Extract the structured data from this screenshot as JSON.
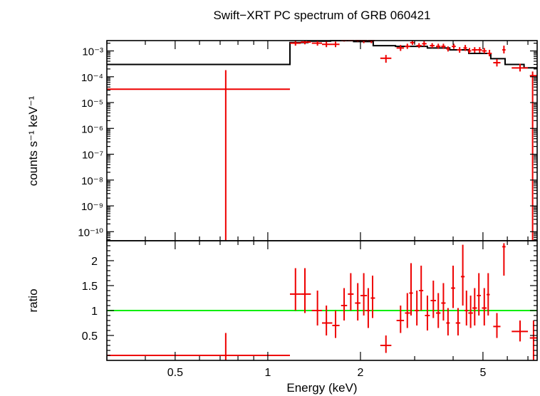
{
  "chart_data": {
    "type": "scatter",
    "title": "Swift−XRT PC spectrum of GRB 060421",
    "xlabel": "Energy (keV)",
    "xscale": "log",
    "xlim": [
      0.3,
      7.5
    ],
    "xticks": [
      {
        "value": 0.5,
        "label": "0.5"
      },
      {
        "value": 1,
        "label": "1"
      },
      {
        "value": 2,
        "label": "2"
      },
      {
        "value": 5,
        "label": "5"
      }
    ],
    "colors": {
      "data": "#ee0000",
      "model": "#000000",
      "unity": "#00ee00"
    },
    "top_panel": {
      "ylabel": "counts s⁻¹ keV⁻¹",
      "yscale": "log",
      "ylim_exp": [
        -10.35,
        -2.6
      ],
      "ytick_exponents": [
        -3,
        -4,
        -5,
        -6,
        -7,
        -8,
        -9,
        -10
      ],
      "ytick_labels": [
        "10⁻³",
        "10⁻⁴",
        "10⁻⁵",
        "10⁻⁶",
        "10⁻⁷",
        "10⁻⁸",
        "10⁻⁹",
        "10⁻¹⁰"
      ],
      "model_steps": [
        {
          "x0": 0.3,
          "x1": 1.18,
          "y": 0.0003
        },
        {
          "x0": 1.18,
          "x1": 1.35,
          "y": 0.0021
        },
        {
          "x0": 1.35,
          "x1": 1.6,
          "y": 0.0024
        },
        {
          "x0": 1.6,
          "x1": 1.9,
          "y": 0.0025
        },
        {
          "x0": 1.9,
          "x1": 2.2,
          "y": 0.0023
        },
        {
          "x0": 2.2,
          "x1": 2.6,
          "y": 0.0016
        },
        {
          "x0": 2.6,
          "x1": 3.3,
          "y": 0.0015
        },
        {
          "x0": 3.3,
          "x1": 3.9,
          "y": 0.0013
        },
        {
          "x0": 3.9,
          "x1": 4.5,
          "y": 0.0011
        },
        {
          "x0": 4.5,
          "x1": 5.3,
          "y": 0.0008
        },
        {
          "x0": 5.3,
          "x1": 5.9,
          "y": 0.0005
        },
        {
          "x0": 5.9,
          "x1": 6.8,
          "y": 0.0003
        },
        {
          "x0": 6.8,
          "x1": 7.5,
          "y": 0.00022
        }
      ],
      "points": [
        {
          "x": 0.73,
          "xlo": 0.3,
          "xhi": 1.18,
          "y": 3.3e-05,
          "ylo": 3e-11,
          "yhi": 0.00018
        },
        {
          "x": 1.23,
          "xlo": 1.18,
          "xhi": 1.28,
          "y": 0.002,
          "ylo": 0.0016,
          "yhi": 0.0025
        },
        {
          "x": 1.32,
          "xlo": 1.28,
          "xhi": 1.38,
          "y": 0.0022,
          "ylo": 0.0018,
          "yhi": 0.0028
        },
        {
          "x": 1.45,
          "xlo": 1.39,
          "xhi": 1.5,
          "y": 0.002,
          "ylo": 0.0016,
          "yhi": 0.0025
        },
        {
          "x": 1.55,
          "xlo": 1.5,
          "xhi": 1.62,
          "y": 0.0018,
          "ylo": 0.0014,
          "yhi": 0.0023
        },
        {
          "x": 1.66,
          "xlo": 1.62,
          "xhi": 1.71,
          "y": 0.0018,
          "ylo": 0.0014,
          "yhi": 0.0023
        },
        {
          "x": 1.77,
          "xlo": 1.73,
          "xhi": 1.81,
          "y": 0.0028,
          "ylo": 0.0023,
          "yhi": 0.0034
        },
        {
          "x": 1.86,
          "xlo": 1.82,
          "xhi": 1.9,
          "y": 0.003,
          "ylo": 0.0025,
          "yhi": 0.0036
        },
        {
          "x": 1.96,
          "xlo": 1.92,
          "xhi": 2.0,
          "y": 0.0028,
          "ylo": 0.0023,
          "yhi": 0.0034
        },
        {
          "x": 2.05,
          "xlo": 2.0,
          "xhi": 2.1,
          "y": 0.0025,
          "ylo": 0.002,
          "yhi": 0.0031
        },
        {
          "x": 2.17,
          "xlo": 2.12,
          "xhi": 2.22,
          "y": 0.0025,
          "ylo": 0.002,
          "yhi": 0.0031
        },
        {
          "x": 2.42,
          "xlo": 2.32,
          "xhi": 2.52,
          "y": 0.00052,
          "ylo": 0.00035,
          "yhi": 0.0007
        },
        {
          "x": 2.7,
          "xlo": 2.62,
          "xhi": 2.77,
          "y": 0.0013,
          "ylo": 0.001,
          "yhi": 0.0017
        },
        {
          "x": 2.84,
          "xlo": 2.79,
          "xhi": 2.9,
          "y": 0.0015,
          "ylo": 0.0012,
          "yhi": 0.0019
        },
        {
          "x": 2.95,
          "xlo": 2.9,
          "xhi": 3.0,
          "y": 0.0021,
          "ylo": 0.0017,
          "yhi": 0.0026
        },
        {
          "x": 3.1,
          "xlo": 3.04,
          "xhi": 3.16,
          "y": 0.0016,
          "ylo": 0.0013,
          "yhi": 0.002
        },
        {
          "x": 3.22,
          "xlo": 3.17,
          "xhi": 3.28,
          "y": 0.0019,
          "ylo": 0.0015,
          "yhi": 0.0024
        },
        {
          "x": 3.42,
          "xlo": 3.36,
          "xhi": 3.48,
          "y": 0.0016,
          "ylo": 0.0013,
          "yhi": 0.002
        },
        {
          "x": 3.58,
          "xlo": 3.52,
          "xhi": 3.64,
          "y": 0.0015,
          "ylo": 0.0012,
          "yhi": 0.0019
        },
        {
          "x": 3.72,
          "xlo": 3.66,
          "xhi": 3.78,
          "y": 0.0015,
          "ylo": 0.0012,
          "yhi": 0.0019
        },
        {
          "x": 3.85,
          "xlo": 3.8,
          "xhi": 3.9,
          "y": 0.0012,
          "ylo": 0.00095,
          "yhi": 0.0015
        },
        {
          "x": 4.02,
          "xlo": 3.96,
          "xhi": 4.08,
          "y": 0.0015,
          "ylo": 0.0012,
          "yhi": 0.0019
        },
        {
          "x": 4.2,
          "xlo": 4.12,
          "xhi": 4.26,
          "y": 0.0011,
          "ylo": 0.00085,
          "yhi": 0.0014
        },
        {
          "x": 4.38,
          "xlo": 4.32,
          "xhi": 4.44,
          "y": 0.0013,
          "ylo": 0.001,
          "yhi": 0.0017
        },
        {
          "x": 4.52,
          "xlo": 4.46,
          "xhi": 4.58,
          "y": 0.001,
          "ylo": 0.0008,
          "yhi": 0.0013
        },
        {
          "x": 4.7,
          "xlo": 4.6,
          "xhi": 4.8,
          "y": 0.0011,
          "ylo": 0.00085,
          "yhi": 0.0014
        },
        {
          "x": 4.88,
          "xlo": 4.8,
          "xhi": 4.96,
          "y": 0.0011,
          "ylo": 0.00085,
          "yhi": 0.0014
        },
        {
          "x": 5.05,
          "xlo": 4.96,
          "xhi": 5.14,
          "y": 0.001,
          "ylo": 0.0008,
          "yhi": 0.0013
        },
        {
          "x": 5.25,
          "xlo": 5.16,
          "xhi": 5.34,
          "y": 0.0008,
          "ylo": 0.00062,
          "yhi": 0.0011
        },
        {
          "x": 5.55,
          "xlo": 5.4,
          "xhi": 5.7,
          "y": 0.00035,
          "ylo": 0.00025,
          "yhi": 0.00048
        },
        {
          "x": 5.85,
          "xlo": 5.78,
          "xhi": 5.92,
          "y": 0.0011,
          "ylo": 0.0008,
          "yhi": 0.0016
        },
        {
          "x": 6.6,
          "xlo": 6.2,
          "xhi": 7.0,
          "y": 0.00022,
          "ylo": 0.00016,
          "yhi": 0.00032
        },
        {
          "x": 7.25,
          "xlo": 7.1,
          "xhi": 7.5,
          "y": 0.00011,
          "ylo": 3e-11,
          "yhi": 0.00016
        }
      ]
    },
    "bottom_panel": {
      "ylabel": "ratio",
      "ylim": [
        0.0,
        2.4
      ],
      "yticks": [
        {
          "value": 0.5,
          "label": "0.5"
        },
        {
          "value": 1,
          "label": "1"
        },
        {
          "value": 1.5,
          "label": "1.5"
        },
        {
          "value": 2,
          "label": "2"
        }
      ],
      "unity_line": 1.0,
      "points": [
        {
          "x": 0.73,
          "xlo": 0.3,
          "xhi": 1.18,
          "y": 0.1,
          "ylo": 0.0,
          "yhi": 0.55
        },
        {
          "x": 1.23,
          "xlo": 1.18,
          "xhi": 1.28,
          "y": 1.33,
          "ylo": 1.0,
          "yhi": 1.85
        },
        {
          "x": 1.32,
          "xlo": 1.28,
          "xhi": 1.38,
          "y": 1.33,
          "ylo": 0.95,
          "yhi": 1.85
        },
        {
          "x": 1.45,
          "xlo": 1.39,
          "xhi": 1.5,
          "y": 1.0,
          "ylo": 0.7,
          "yhi": 1.4
        },
        {
          "x": 1.55,
          "xlo": 1.5,
          "xhi": 1.62,
          "y": 0.75,
          "ylo": 0.5,
          "yhi": 1.1
        },
        {
          "x": 1.66,
          "xlo": 1.62,
          "xhi": 1.71,
          "y": 0.7,
          "ylo": 0.45,
          "yhi": 1.0
        },
        {
          "x": 1.77,
          "xlo": 1.73,
          "xhi": 1.81,
          "y": 1.1,
          "ylo": 0.8,
          "yhi": 1.45
        },
        {
          "x": 1.86,
          "xlo": 1.82,
          "xhi": 1.9,
          "y": 1.33,
          "ylo": 1.0,
          "yhi": 1.75
        },
        {
          "x": 1.96,
          "xlo": 1.92,
          "xhi": 2.0,
          "y": 1.15,
          "ylo": 0.8,
          "yhi": 1.55
        },
        {
          "x": 2.05,
          "xlo": 2.0,
          "xhi": 2.1,
          "y": 1.3,
          "ylo": 0.9,
          "yhi": 1.75
        },
        {
          "x": 2.12,
          "xlo": 2.08,
          "xhi": 2.15,
          "y": 1.0,
          "ylo": 0.65,
          "yhi": 1.45
        },
        {
          "x": 2.19,
          "xlo": 2.16,
          "xhi": 2.23,
          "y": 1.25,
          "ylo": 0.85,
          "yhi": 1.7
        },
        {
          "x": 2.42,
          "xlo": 2.32,
          "xhi": 2.52,
          "y": 0.3,
          "ylo": 0.15,
          "yhi": 0.5
        },
        {
          "x": 2.7,
          "xlo": 2.62,
          "xhi": 2.77,
          "y": 0.8,
          "ylo": 0.55,
          "yhi": 1.1
        },
        {
          "x": 2.84,
          "xlo": 2.79,
          "xhi": 2.9,
          "y": 0.95,
          "ylo": 0.65,
          "yhi": 1.35
        },
        {
          "x": 2.92,
          "xlo": 2.88,
          "xhi": 2.96,
          "y": 1.35,
          "ylo": 0.9,
          "yhi": 1.95
        },
        {
          "x": 3.05,
          "xlo": 3.0,
          "xhi": 3.1,
          "y": 1.0,
          "ylo": 0.7,
          "yhi": 1.4
        },
        {
          "x": 3.15,
          "xlo": 3.1,
          "xhi": 3.2,
          "y": 1.4,
          "ylo": 1.0,
          "yhi": 1.9
        },
        {
          "x": 3.3,
          "xlo": 3.24,
          "xhi": 3.36,
          "y": 0.9,
          "ylo": 0.6,
          "yhi": 1.3
        },
        {
          "x": 3.45,
          "xlo": 3.38,
          "xhi": 3.52,
          "y": 1.2,
          "ylo": 0.85,
          "yhi": 1.6
        },
        {
          "x": 3.58,
          "xlo": 3.52,
          "xhi": 3.64,
          "y": 0.95,
          "ylo": 0.65,
          "yhi": 1.35
        },
        {
          "x": 3.72,
          "xlo": 3.66,
          "xhi": 3.78,
          "y": 1.15,
          "ylo": 0.8,
          "yhi": 1.55
        },
        {
          "x": 3.85,
          "xlo": 3.8,
          "xhi": 3.9,
          "y": 0.75,
          "ylo": 0.5,
          "yhi": 1.05
        },
        {
          "x": 4.0,
          "xlo": 3.94,
          "xhi": 4.06,
          "y": 1.45,
          "ylo": 1.05,
          "yhi": 1.9
        },
        {
          "x": 4.15,
          "xlo": 4.08,
          "xhi": 4.22,
          "y": 0.75,
          "ylo": 0.5,
          "yhi": 1.05
        },
        {
          "x": 4.3,
          "xlo": 4.24,
          "xhi": 4.36,
          "y": 1.68,
          "ylo": 1.1,
          "yhi": 2.32
        },
        {
          "x": 4.42,
          "xlo": 4.36,
          "xhi": 4.48,
          "y": 1.0,
          "ylo": 0.7,
          "yhi": 1.4
        },
        {
          "x": 4.56,
          "xlo": 4.48,
          "xhi": 4.64,
          "y": 0.95,
          "ylo": 0.65,
          "yhi": 1.3
        },
        {
          "x": 4.7,
          "xlo": 4.62,
          "xhi": 4.78,
          "y": 1.05,
          "ylo": 0.7,
          "yhi": 1.45
        },
        {
          "x": 4.85,
          "xlo": 4.78,
          "xhi": 4.92,
          "y": 1.3,
          "ylo": 0.9,
          "yhi": 1.75
        },
        {
          "x": 5.05,
          "xlo": 4.96,
          "xhi": 5.14,
          "y": 1.05,
          "ylo": 0.7,
          "yhi": 1.45
        },
        {
          "x": 5.2,
          "xlo": 5.14,
          "xhi": 5.26,
          "y": 1.32,
          "ylo": 0.9,
          "yhi": 1.75
        },
        {
          "x": 5.55,
          "xlo": 5.4,
          "xhi": 5.7,
          "y": 0.68,
          "ylo": 0.45,
          "yhi": 0.95
        },
        {
          "x": 5.85,
          "xlo": 5.78,
          "xhi": 5.92,
          "y": 2.28,
          "ylo": 1.7,
          "yhi": 2.35
        },
        {
          "x": 6.6,
          "xlo": 6.2,
          "xhi": 7.0,
          "y": 0.58,
          "ylo": 0.38,
          "yhi": 0.8
        },
        {
          "x": 7.3,
          "xlo": 7.1,
          "xhi": 7.5,
          "y": 0.45,
          "ylo": 0.0,
          "yhi": 0.8
        }
      ]
    }
  }
}
